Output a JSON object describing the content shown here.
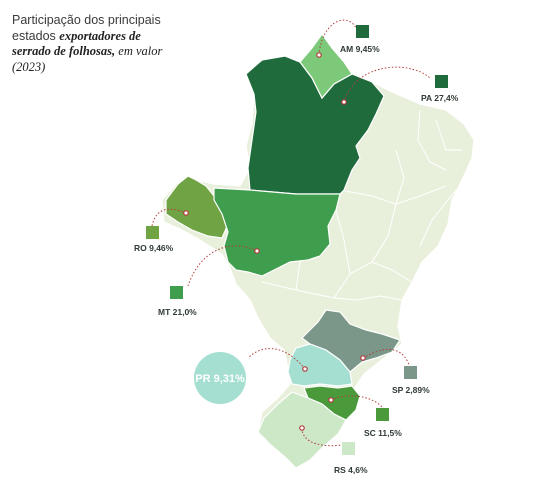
{
  "title": {
    "plain": "Participação dos principais estados ",
    "bold": "exportadores de serrado de folhosas,",
    "italic": " em valor (2023)"
  },
  "colors": {
    "base": "#e8f0dc",
    "border": "#ffffff",
    "leader": "#b33a3a",
    "AM": "#7dc97a",
    "PA": "#1f6b3c",
    "RO": "#6fa343",
    "MT": "#3e9e4d",
    "SP": "#7a978a",
    "PR": "#a4dfd2",
    "SC": "#4a9a3c",
    "RS": "#cde8c7"
  },
  "states": [
    {
      "code": "AM",
      "label": "AM 9,45%",
      "value": 9.45
    },
    {
      "code": "PA",
      "label": "PA 27,4%",
      "value": 27.4
    },
    {
      "code": "RO",
      "label": "RO 9,46%",
      "value": 9.46
    },
    {
      "code": "MT",
      "label": "MT 21,0%",
      "value": 21.0
    },
    {
      "code": "SP",
      "label": "SP 2,89%",
      "value": 2.89
    },
    {
      "code": "PR",
      "label": "PR 9,31%",
      "value": 9.31
    },
    {
      "code": "SC",
      "label": "SC 11,5%",
      "value": 11.5
    },
    {
      "code": "RS",
      "label": "RS 4,6%",
      "value": 4.6
    }
  ]
}
